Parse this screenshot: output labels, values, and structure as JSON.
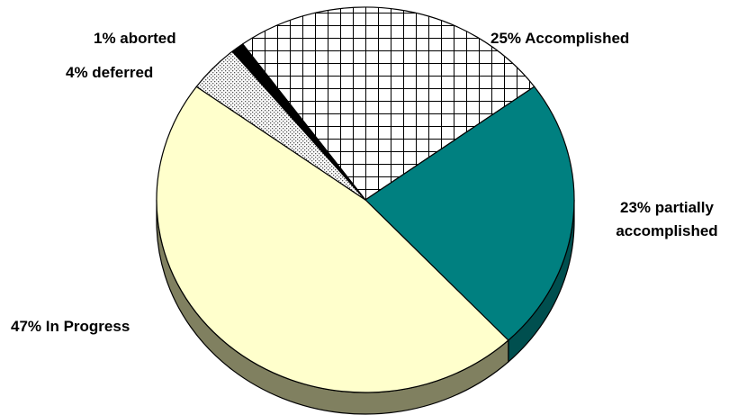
{
  "chart_data": {
    "type": "pie",
    "title": "",
    "style": "3d-pie",
    "slices": [
      {
        "label": "Accomplished",
        "value": 25,
        "text": "25% Accomplished",
        "color": "#ffffff",
        "pattern": "crosshatch"
      },
      {
        "label": "partially accomplished",
        "value": 23,
        "text": "23% partially accomplished",
        "text_lines": [
          "23% partially",
          "accomplished"
        ],
        "color": "#008080",
        "side_color": "#004f4f",
        "pattern": "solid"
      },
      {
        "label": "In Progress",
        "value": 47,
        "text": "47% In Progress",
        "color": "#ffffcc",
        "side_color": "#808060",
        "pattern": "solid"
      },
      {
        "label": "deferred",
        "value": 4,
        "text": "4% deferred",
        "color": "#d9d9d9",
        "pattern": "dots"
      },
      {
        "label": "aborted",
        "value": 1,
        "text": "1% aborted",
        "color": "#000000",
        "pattern": "solid"
      }
    ],
    "legend": "none",
    "labels": "outside"
  }
}
